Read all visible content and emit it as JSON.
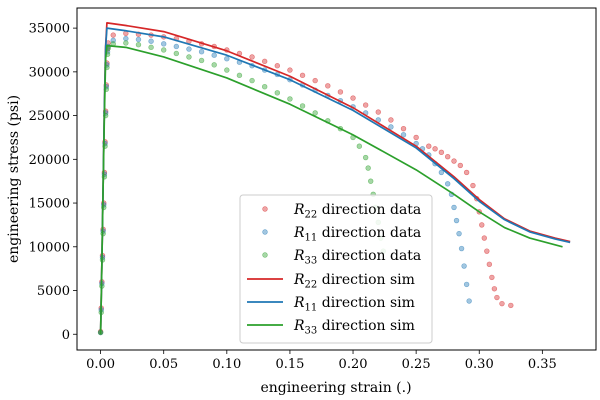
{
  "chart_data": {
    "type": "scatter",
    "title": "",
    "xlabel": "engineering strain (.)",
    "ylabel": "engineering stress (psi)",
    "xlim": [
      -0.0187,
      0.3925
    ],
    "ylim": [
      -1800,
      37300
    ],
    "x_ticks": [
      {
        "value": 0.0,
        "label": "0.00"
      },
      {
        "value": 0.05,
        "label": "0.05"
      },
      {
        "value": 0.1,
        "label": "0.10"
      },
      {
        "value": 0.15,
        "label": "0.15"
      },
      {
        "value": 0.2,
        "label": "0.20"
      },
      {
        "value": 0.25,
        "label": "0.25"
      },
      {
        "value": 0.3,
        "label": "0.30"
      },
      {
        "value": 0.35,
        "label": "0.35"
      }
    ],
    "y_ticks": [
      {
        "value": 0,
        "label": "0"
      },
      {
        "value": 5000,
        "label": "5000"
      },
      {
        "value": 10000,
        "label": "10000"
      },
      {
        "value": 15000,
        "label": "15000"
      },
      {
        "value": 20000,
        "label": "20000"
      },
      {
        "value": 25000,
        "label": "25000"
      },
      {
        "value": 30000,
        "label": "30000"
      },
      {
        "value": 35000,
        "label": "35000"
      }
    ],
    "grid": false,
    "legend_position": "lower-center",
    "series": [
      {
        "name": "R22 direction data",
        "legend_main": "R",
        "legend_sub": "22",
        "legend_rest": " direction data",
        "kind": "scatter",
        "color": "#d62728",
        "x": [
          0.0,
          0.0005,
          0.001,
          0.0015,
          0.002,
          0.0025,
          0.003,
          0.0035,
          0.004,
          0.0045,
          0.005,
          0.0055,
          0.006,
          0.01,
          0.02,
          0.03,
          0.04,
          0.05,
          0.06,
          0.07,
          0.08,
          0.09,
          0.1,
          0.11,
          0.12,
          0.13,
          0.14,
          0.15,
          0.16,
          0.17,
          0.18,
          0.19,
          0.2,
          0.21,
          0.22,
          0.23,
          0.24,
          0.25,
          0.26,
          0.265,
          0.27,
          0.275,
          0.28,
          0.285,
          0.29,
          0.295,
          0.298,
          0.3,
          0.302,
          0.304,
          0.306,
          0.308,
          0.31,
          0.312,
          0.314,
          0.318,
          0.325
        ],
        "y": [
          300,
          3000,
          6000,
          9000,
          12000,
          15000,
          18500,
          22000,
          25500,
          28500,
          31000,
          32600,
          33300,
          34200,
          34400,
          34300,
          34200,
          34000,
          33800,
          33500,
          33200,
          32900,
          32500,
          32100,
          31700,
          31200,
          30700,
          30200,
          29600,
          29000,
          28400,
          27700,
          27000,
          26200,
          25400,
          24500,
          23500,
          22500,
          21500,
          21200,
          20800,
          20300,
          19800,
          19300,
          18500,
          17000,
          15500,
          14000,
          12500,
          11000,
          9500,
          8000,
          6500,
          5200,
          4200,
          3500,
          3300
        ]
      },
      {
        "name": "R11 direction data",
        "legend_main": "R",
        "legend_sub": "11",
        "legend_rest": " direction data",
        "kind": "scatter",
        "color": "#1f77b4",
        "x": [
          0.0,
          0.0005,
          0.001,
          0.0015,
          0.002,
          0.0025,
          0.003,
          0.0035,
          0.004,
          0.0045,
          0.005,
          0.0055,
          0.006,
          0.01,
          0.02,
          0.03,
          0.04,
          0.05,
          0.06,
          0.07,
          0.08,
          0.09,
          0.1,
          0.11,
          0.12,
          0.13,
          0.14,
          0.15,
          0.16,
          0.17,
          0.18,
          0.19,
          0.2,
          0.21,
          0.22,
          0.23,
          0.24,
          0.25,
          0.255,
          0.26,
          0.265,
          0.27,
          0.275,
          0.278,
          0.28,
          0.282,
          0.284,
          0.286,
          0.288,
          0.29,
          0.292
        ],
        "y": [
          200,
          2800,
          5800,
          8800,
          11800,
          14800,
          18300,
          21800,
          25300,
          28300,
          30800,
          32300,
          32900,
          33600,
          33800,
          33700,
          33500,
          33200,
          32900,
          32600,
          32300,
          31900,
          31500,
          31100,
          30700,
          30200,
          29700,
          29100,
          28500,
          27900,
          27300,
          26700,
          26000,
          25300,
          24500,
          23700,
          22800,
          21800,
          21200,
          20500,
          19500,
          18500,
          17200,
          16000,
          14500,
          13000,
          11500,
          9800,
          7800,
          5700,
          3800
        ]
      },
      {
        "name": "R33 direction data",
        "legend_main": "R",
        "legend_sub": "33",
        "legend_rest": " direction data",
        "kind": "scatter",
        "color": "#2ca02c",
        "x": [
          0.0,
          0.0005,
          0.001,
          0.0015,
          0.002,
          0.0025,
          0.003,
          0.0035,
          0.004,
          0.0045,
          0.005,
          0.0055,
          0.006,
          0.01,
          0.02,
          0.03,
          0.04,
          0.05,
          0.06,
          0.07,
          0.08,
          0.09,
          0.1,
          0.11,
          0.12,
          0.13,
          0.14,
          0.15,
          0.16,
          0.17,
          0.18,
          0.19,
          0.2,
          0.205,
          0.21,
          0.212,
          0.214,
          0.216,
          0.218,
          0.22,
          0.222,
          0.224
        ],
        "y": [
          200,
          2500,
          5500,
          8500,
          11500,
          14500,
          18000,
          21500,
          25000,
          28000,
          30500,
          32000,
          32700,
          33200,
          33300,
          33100,
          32800,
          32500,
          32100,
          31700,
          31300,
          30800,
          30200,
          29600,
          29000,
          28300,
          27600,
          26900,
          26100,
          25300,
          24400,
          23500,
          22500,
          21500,
          20200,
          19000,
          17500,
          16000,
          14500,
          12800,
          11000,
          9500
        ]
      },
      {
        "name": "R22 direction sim",
        "legend_main": "R",
        "legend_sub": "22",
        "legend_rest": " direction sim",
        "kind": "line",
        "color": "#d62728",
        "x": [
          0.0,
          0.001,
          0.002,
          0.003,
          0.004,
          0.005,
          0.02,
          0.05,
          0.1,
          0.15,
          0.2,
          0.25,
          0.28,
          0.3,
          0.32,
          0.34,
          0.36,
          0.372
        ],
        "y": [
          0,
          8000,
          17000,
          26000,
          33000,
          35600,
          35300,
          34600,
          32400,
          29500,
          25900,
          21500,
          18000,
          15400,
          13200,
          11800,
          11000,
          10600
        ]
      },
      {
        "name": "R11 direction sim",
        "legend_main": "R",
        "legend_sub": "11",
        "legend_rest": " direction sim",
        "kind": "line",
        "color": "#1f77b4",
        "x": [
          0.0,
          0.001,
          0.002,
          0.003,
          0.004,
          0.005,
          0.02,
          0.05,
          0.1,
          0.15,
          0.2,
          0.25,
          0.28,
          0.3,
          0.32,
          0.34,
          0.36,
          0.372
        ],
        "y": [
          0,
          8000,
          17000,
          26000,
          32800,
          35000,
          34700,
          34000,
          31900,
          29100,
          25600,
          21300,
          17800,
          15200,
          13100,
          11700,
          10900,
          10500
        ]
      },
      {
        "name": "R33 direction sim",
        "legend_main": "R",
        "legend_sub": "33",
        "legend_rest": " direction sim",
        "kind": "line",
        "color": "#2ca02c",
        "x": [
          0.0,
          0.001,
          0.002,
          0.003,
          0.004,
          0.005,
          0.02,
          0.05,
          0.1,
          0.15,
          0.2,
          0.25,
          0.28,
          0.3,
          0.32,
          0.34,
          0.366
        ],
        "y": [
          0,
          8000,
          17000,
          25000,
          31500,
          33000,
          32800,
          31700,
          29300,
          26300,
          22800,
          18800,
          16000,
          14000,
          12200,
          11000,
          10000
        ]
      }
    ]
  }
}
